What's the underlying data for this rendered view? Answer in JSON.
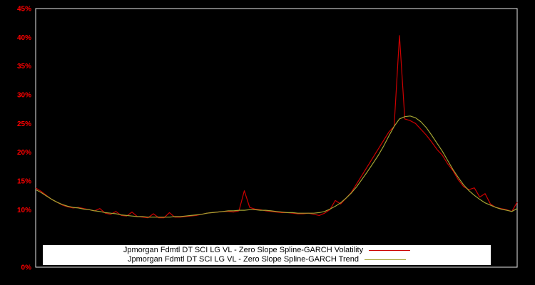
{
  "legend": {
    "items": [
      {
        "label": "Jpmorgan Fdmtl DT SCI LG VL - Zero Slope Spline-GARCH Volatility",
        "color": "#cc0000"
      },
      {
        "label": "Jpmorgan Fdmtl DT SCI LG VL - Zero Slope Spline-GARCH Trend",
        "color": "#a3a332"
      }
    ]
  },
  "chart_data": {
    "type": "line",
    "title": "",
    "background": "#000000",
    "frame_color": "#e8e8e8",
    "tick_color": "#ff0000",
    "grid": false,
    "legend_position": "bottom",
    "ylim": [
      0,
      45
    ],
    "yticks": [
      {
        "label": "45%",
        "value": 45
      },
      {
        "label": "40%",
        "value": 40
      },
      {
        "label": "35%",
        "value": 35
      },
      {
        "label": "30%",
        "value": 30
      },
      {
        "label": "25%",
        "value": 25
      },
      {
        "label": "20%",
        "value": 20
      },
      {
        "label": "15%",
        "value": 15
      },
      {
        "label": "10%",
        "value": 10
      },
      {
        "label": "0%",
        "value": 0
      }
    ],
    "x_tick_labels": [],
    "series": [
      {
        "name": "Jpmorgan Fdmtl DT SCI LG VL - Zero Slope Spline-GARCH Volatility",
        "color": "#cc0000",
        "unit": "%",
        "values": [
          13.8,
          13.2,
          12.5,
          11.8,
          11.3,
          10.8,
          10.5,
          10.3,
          10.4,
          10.2,
          10.0,
          9.8,
          10.2,
          9.4,
          9.2,
          9.7,
          9.0,
          8.9,
          9.6,
          8.8,
          8.7,
          8.6,
          9.3,
          8.6,
          8.6,
          9.5,
          8.7,
          8.7,
          8.8,
          8.9,
          9.0,
          9.2,
          9.4,
          9.5,
          9.6,
          9.7,
          9.7,
          9.6,
          9.8,
          13.3,
          10.4,
          10.1,
          10.0,
          9.8,
          9.7,
          9.6,
          9.5,
          9.5,
          9.4,
          9.3,
          9.3,
          9.4,
          9.2,
          9.0,
          9.4,
          10.0,
          11.6,
          11.0,
          12.0,
          13.0,
          14.5,
          16.0,
          17.5,
          19.0,
          20.5,
          22.0,
          23.5,
          24.5,
          40.3,
          25.8,
          25.5,
          25.0,
          24.0,
          23.0,
          21.8,
          20.5,
          19.5,
          18.0,
          16.8,
          15.2,
          14.0,
          13.5,
          13.8,
          12.2,
          12.8,
          11.0,
          10.4,
          10.2,
          10.0,
          9.7,
          11.3
        ]
      },
      {
        "name": "Jpmorgan Fdmtl DT SCI LG VL - Zero Slope Spline-GARCH Trend",
        "color": "#a3a332",
        "unit": "%",
        "values": [
          13.5,
          13.0,
          12.4,
          11.8,
          11.3,
          10.9,
          10.6,
          10.4,
          10.3,
          10.1,
          10.0,
          9.8,
          9.7,
          9.5,
          9.4,
          9.3,
          9.1,
          9.0,
          8.9,
          8.8,
          8.8,
          8.7,
          8.7,
          8.7,
          8.7,
          8.7,
          8.8,
          8.8,
          8.9,
          9.0,
          9.1,
          9.2,
          9.4,
          9.5,
          9.6,
          9.7,
          9.8,
          9.8,
          9.9,
          9.9,
          10.0,
          10.0,
          9.9,
          9.9,
          9.8,
          9.7,
          9.6,
          9.5,
          9.5,
          9.4,
          9.4,
          9.4,
          9.4,
          9.5,
          9.7,
          10.1,
          10.6,
          11.2,
          12.0,
          12.9,
          14.0,
          15.3,
          16.6,
          18.0,
          19.4,
          21.0,
          22.8,
          24.5,
          25.8,
          26.2,
          26.3,
          26.0,
          25.3,
          24.3,
          23.0,
          21.6,
          20.2,
          18.6,
          17.0,
          15.6,
          14.3,
          13.3,
          12.5,
          11.8,
          11.2,
          10.8,
          10.4,
          10.1,
          9.9,
          9.7,
          10.2
        ]
      }
    ]
  }
}
